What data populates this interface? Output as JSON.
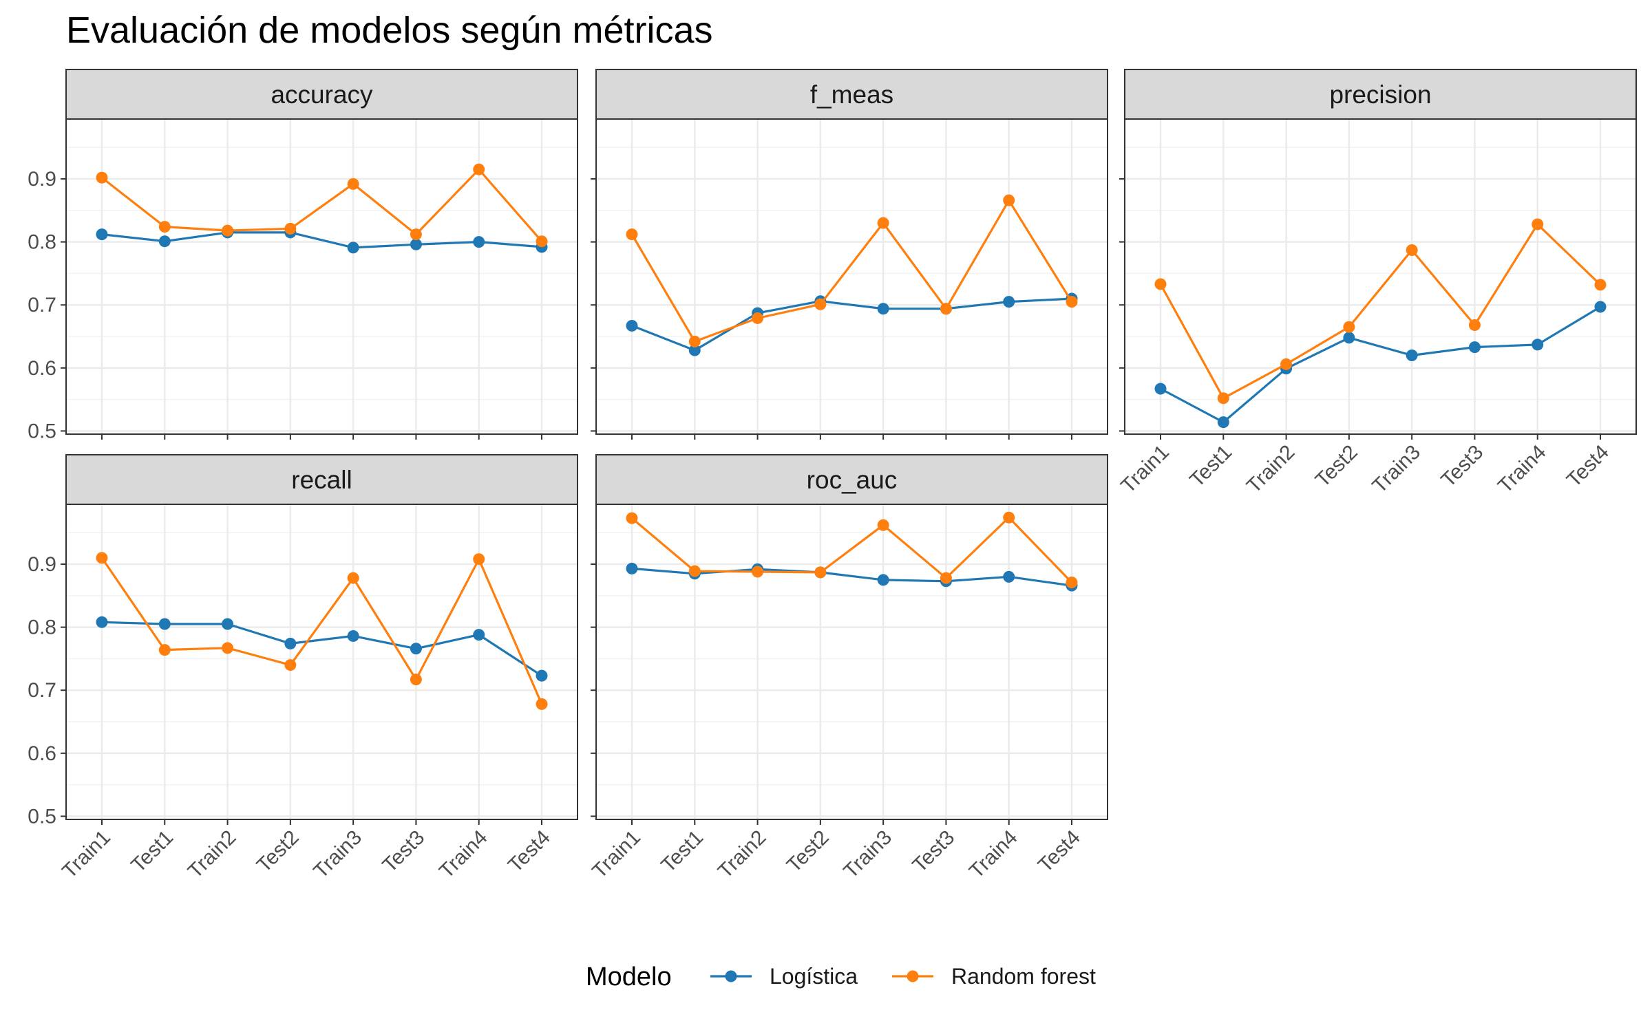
{
  "chart_data": {
    "type": "line",
    "title": "Evaluación de modelos según métricas",
    "xlabel": "",
    "ylabel": "",
    "categories": [
      "Train1",
      "Test1",
      "Train2",
      "Test2",
      "Train3",
      "Test3",
      "Train4",
      "Test4"
    ],
    "ylim": [
      0.495,
      0.995
    ],
    "yticks": [
      "0.5",
      "0.6",
      "0.7",
      "0.8",
      "0.9"
    ],
    "grid": true,
    "legend": {
      "title": "Modelo",
      "position": "bottom",
      "entries": [
        {
          "name": "Logística",
          "color": "#1f77b4"
        },
        {
          "name": "Random forest",
          "color": "#ff7f0e"
        }
      ]
    },
    "facets": [
      {
        "name": "accuracy",
        "series": [
          {
            "name": "Logística",
            "values": [
              0.812,
              0.801,
              0.815,
              0.815,
              0.791,
              0.796,
              0.8,
              0.792
            ]
          },
          {
            "name": "Random forest",
            "values": [
              0.902,
              0.824,
              0.818,
              0.821,
              0.892,
              0.812,
              0.915,
              0.801
            ]
          }
        ]
      },
      {
        "name": "f_meas",
        "series": [
          {
            "name": "Logística",
            "values": [
              0.667,
              0.628,
              0.687,
              0.706,
              0.694,
              0.694,
              0.705,
              0.71
            ]
          },
          {
            "name": "Random forest",
            "values": [
              0.812,
              0.642,
              0.679,
              0.701,
              0.83,
              0.694,
              0.866,
              0.705
            ]
          }
        ]
      },
      {
        "name": "precision",
        "series": [
          {
            "name": "Logística",
            "values": [
              0.567,
              0.514,
              0.599,
              0.648,
              0.62,
              0.633,
              0.637,
              0.697
            ]
          },
          {
            "name": "Random forest",
            "values": [
              0.733,
              0.552,
              0.606,
              0.665,
              0.787,
              0.668,
              0.828,
              0.732
            ]
          }
        ]
      },
      {
        "name": "recall",
        "series": [
          {
            "name": "Logística",
            "values": [
              0.808,
              0.805,
              0.805,
              0.774,
              0.786,
              0.766,
              0.788,
              0.723
            ]
          },
          {
            "name": "Random forest",
            "values": [
              0.91,
              0.764,
              0.767,
              0.74,
              0.878,
              0.717,
              0.908,
              0.678
            ]
          }
        ]
      },
      {
        "name": "roc_auc",
        "series": [
          {
            "name": "Logística",
            "values": [
              0.893,
              0.885,
              0.892,
              0.887,
              0.875,
              0.873,
              0.88,
              0.866
            ]
          },
          {
            "name": "Random forest",
            "values": [
              0.973,
              0.889,
              0.888,
              0.887,
              0.962,
              0.878,
              0.974,
              0.871
            ]
          }
        ]
      }
    ]
  }
}
